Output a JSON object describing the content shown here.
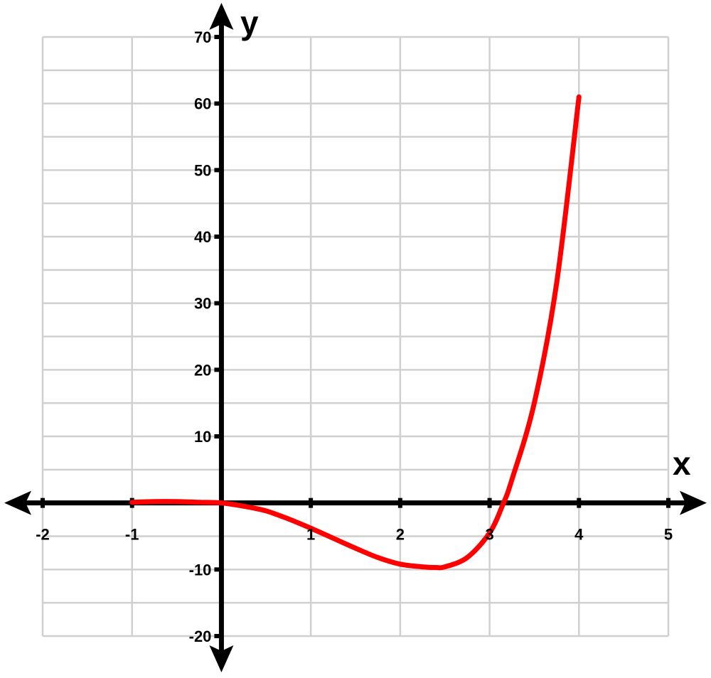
{
  "chart_data": {
    "type": "line",
    "title": "",
    "xlabel": "x",
    "ylabel": "y",
    "xlim": [
      -2,
      5
    ],
    "ylim": [
      -20,
      70
    ],
    "x_ticks": [
      -2,
      -1,
      1,
      2,
      3,
      4,
      5
    ],
    "y_ticks": [
      70,
      60,
      50,
      40,
      30,
      20,
      10,
      -10,
      -20
    ],
    "grid": true,
    "minor_y_step": 5,
    "colors": {
      "curve": "#ff0000",
      "grid": "#d0d0d0",
      "axis": "#000000"
    },
    "series": [
      {
        "x": [
          -1,
          -0.75,
          -0.5,
          -0.25,
          0,
          0.25,
          0.5,
          0.75,
          1,
          1.25,
          1.5,
          1.75,
          2,
          2.25,
          2.4,
          2.5,
          2.75,
          3,
          3.15,
          3.25,
          3.5,
          3.75,
          4
        ],
        "y": [
          0.1,
          0.2,
          0.2,
          0.1,
          0,
          -0.5,
          -1.2,
          -2.4,
          -3.8,
          -5.3,
          -6.8,
          -8.2,
          -9.2,
          -9.6,
          -9.7,
          -9.6,
          -8.2,
          -4.5,
          -0.2,
          3.5,
          15,
          33,
          61
        ]
      }
    ]
  }
}
